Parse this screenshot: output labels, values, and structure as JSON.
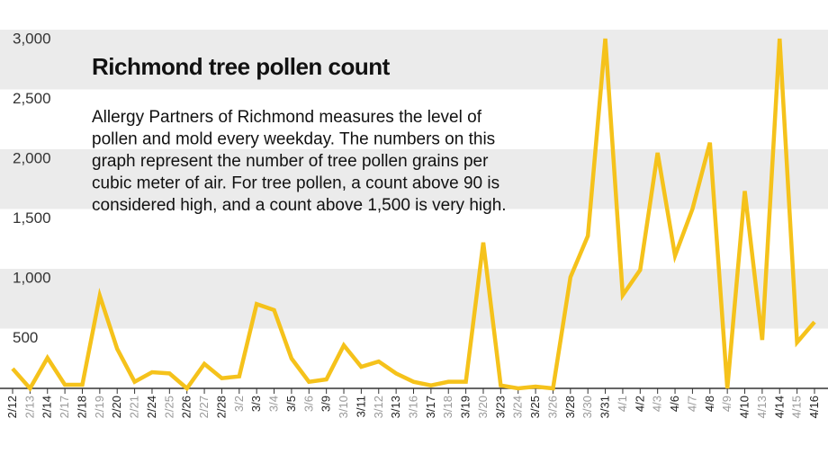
{
  "chart_data": {
    "type": "line",
    "title": "Richmond tree pollen count",
    "subtitle_lines": [
      "Allergy Partners of Richmond measures the level of",
      "pollen and mold every weekday. The numbers on this",
      "graph represent the number of tree pollen grains per",
      "cubic meter of air. For tree pollen, a count above 90 is",
      "considered high, and a count above 1,500 is very high."
    ],
    "categories": [
      "2/12",
      "2/13",
      "2/14",
      "2/17",
      "2/18",
      "2/19",
      "2/20",
      "2/21",
      "2/24",
      "2/25",
      "2/26",
      "2/27",
      "2/28",
      "3/2",
      "3/3",
      "3/4",
      "3/5",
      "3/6",
      "3/9",
      "3/10",
      "3/11",
      "3/12",
      "3/13",
      "3/16",
      "3/17",
      "3/18",
      "3/19",
      "3/20",
      "3/23",
      "3/24",
      "3/25",
      "3/26",
      "3/28",
      "3/30",
      "3/31",
      "4/1",
      "4/2",
      "4/3",
      "4/6",
      "4/7",
      "4/8",
      "4/9",
      "4/10",
      "4/13",
      "4/14",
      "4/15",
      "4/16"
    ],
    "series": [
      {
        "name": "Tree pollen count",
        "color": "#f5c21b",
        "values": [
          165,
          0,
          255,
          30,
          30,
          775,
          330,
          55,
          135,
          125,
          0,
          205,
          85,
          100,
          705,
          655,
          250,
          55,
          75,
          360,
          180,
          225,
          125,
          55,
          25,
          55,
          55,
          1220,
          25,
          0,
          15,
          0,
          930,
          1275,
          2925,
          780,
          990,
          1970,
          1110,
          1500,
          2055,
          0,
          1650,
          405,
          2925,
          385,
          555
        ]
      }
    ],
    "ylim": [
      0,
      3000
    ],
    "yticks": [
      {
        "value": 500,
        "label": "500"
      },
      {
        "value": 1000,
        "label": "1,000"
      },
      {
        "value": 1500,
        "label": "1,500"
      },
      {
        "value": 2000,
        "label": "2,000"
      },
      {
        "value": 2500,
        "label": "2,500"
      },
      {
        "value": 3000,
        "label": "3,000"
      }
    ],
    "grid": "bands"
  }
}
